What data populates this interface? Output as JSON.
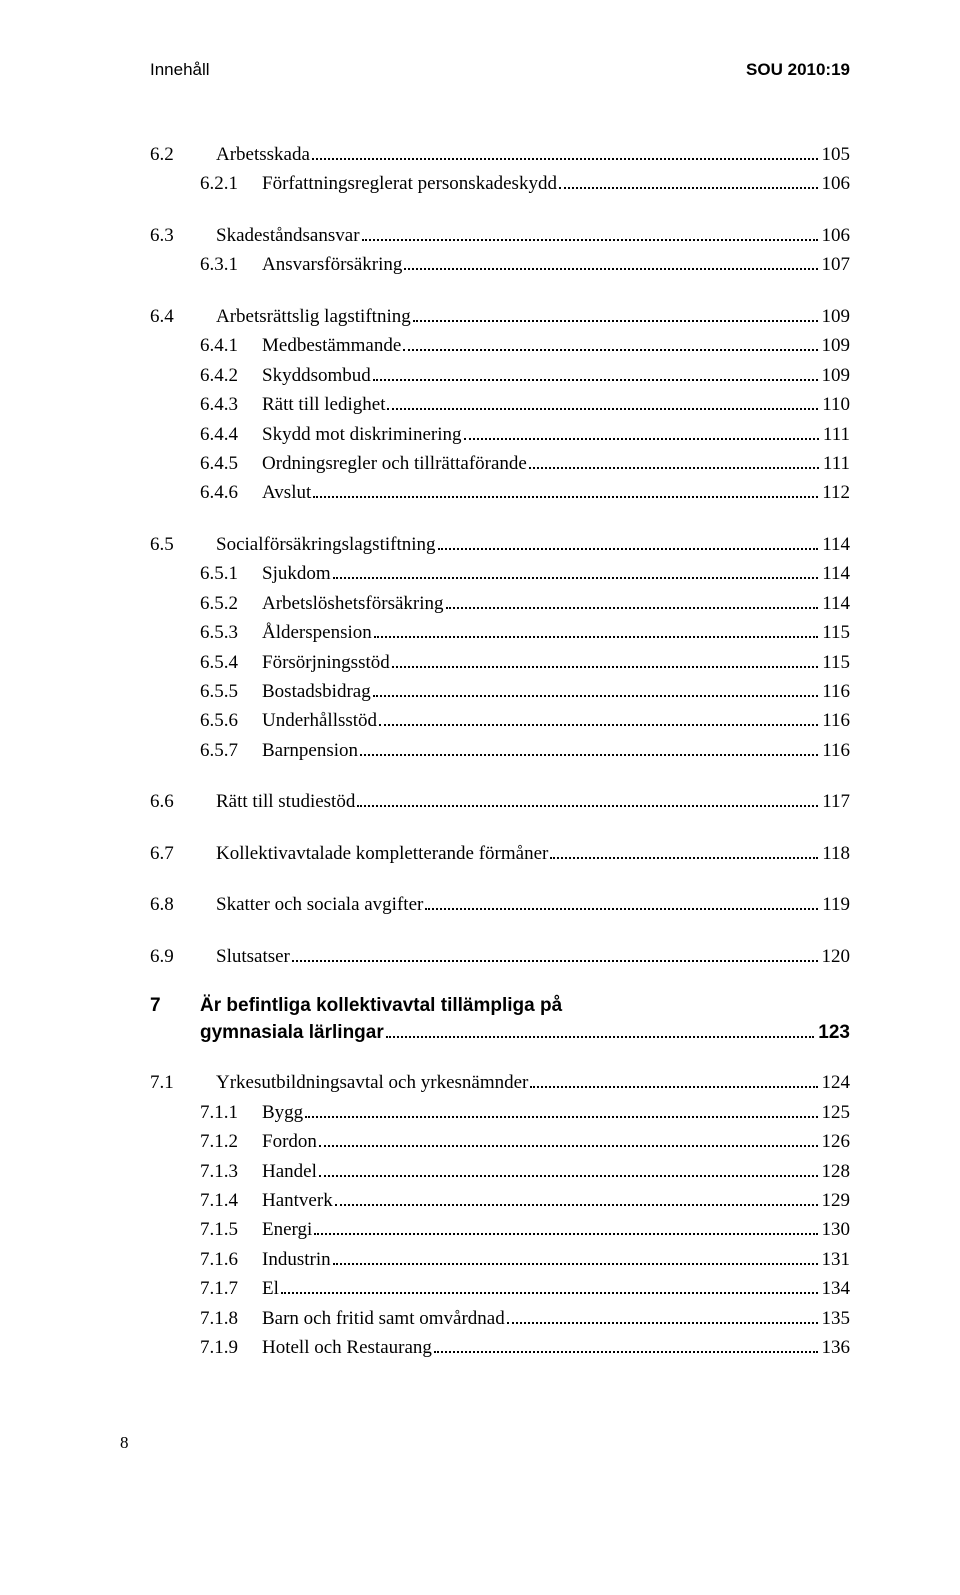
{
  "header": {
    "left": "Innehåll",
    "right": "SOU 2010:19"
  },
  "sections": [
    {
      "lines": [
        {
          "level": "sub",
          "num": "6.2",
          "title": "Arbetsskada",
          "page": "105"
        },
        {
          "level": "subsub",
          "num": "6.2.1",
          "title": "Författningsreglerat personskadeskydd",
          "page": "106"
        }
      ]
    },
    {
      "lines": [
        {
          "level": "sub",
          "num": "6.3",
          "title": "Skadeståndsansvar",
          "page": "106"
        },
        {
          "level": "subsub",
          "num": "6.3.1",
          "title": "Ansvarsförsäkring",
          "page": "107"
        }
      ]
    },
    {
      "lines": [
        {
          "level": "sub",
          "num": "6.4",
          "title": "Arbetsrättslig lagstiftning",
          "page": "109"
        },
        {
          "level": "subsub",
          "num": "6.4.1",
          "title": "Medbestämmande",
          "page": "109"
        },
        {
          "level": "subsub",
          "num": "6.4.2",
          "title": "Skyddsombud",
          "page": "109"
        },
        {
          "level": "subsub",
          "num": "6.4.3",
          "title": "Rätt till ledighet",
          "page": "110"
        },
        {
          "level": "subsub",
          "num": "6.4.4",
          "title": "Skydd mot diskriminering",
          "page": "111"
        },
        {
          "level": "subsub",
          "num": "6.4.5",
          "title": "Ordningsregler och tillrättaförande",
          "page": "111"
        },
        {
          "level": "subsub",
          "num": "6.4.6",
          "title": "Avslut",
          "page": "112"
        }
      ]
    },
    {
      "lines": [
        {
          "level": "sub",
          "num": "6.5",
          "title": "Socialförsäkringslagstiftning",
          "page": "114"
        },
        {
          "level": "subsub",
          "num": "6.5.1",
          "title": "Sjukdom",
          "page": "114"
        },
        {
          "level": "subsub",
          "num": "6.5.2",
          "title": "Arbetslöshetsförsäkring",
          "page": "114"
        },
        {
          "level": "subsub",
          "num": "6.5.3",
          "title": "Ålderspension",
          "page": "115"
        },
        {
          "level": "subsub",
          "num": "6.5.4",
          "title": "Försörjningsstöd",
          "page": "115"
        },
        {
          "level": "subsub",
          "num": "6.5.5",
          "title": "Bostadsbidrag",
          "page": "116"
        },
        {
          "level": "subsub",
          "num": "6.5.6",
          "title": "Underhållsstöd",
          "page": "116"
        },
        {
          "level": "subsub",
          "num": "6.5.7",
          "title": "Barnpension",
          "page": "116"
        }
      ]
    },
    {
      "lines": [
        {
          "level": "sub",
          "num": "6.6",
          "title": "Rätt till studiestöd",
          "page": "117"
        }
      ]
    },
    {
      "lines": [
        {
          "level": "sub",
          "num": "6.7",
          "title": "Kollektivavtalade kompletterande förmåner",
          "page": "118"
        }
      ]
    },
    {
      "lines": [
        {
          "level": "sub",
          "num": "6.8",
          "title": "Skatter och sociala avgifter",
          "page": "119"
        }
      ]
    },
    {
      "lines": [
        {
          "level": "sub",
          "num": "6.9",
          "title": "Slutsatser",
          "page": "120"
        }
      ]
    }
  ],
  "chapter": {
    "num": "7",
    "title": "Är befintliga kollektivavtal tillämpliga på gymnasiala lärlingar",
    "page": "123"
  },
  "chapter_sections": [
    {
      "lines": [
        {
          "level": "sub",
          "num": "7.1",
          "title": "Yrkesutbildningsavtal och yrkesnämnder",
          "page": "124"
        },
        {
          "level": "subsub",
          "num": "7.1.1",
          "title": "Bygg",
          "page": "125"
        },
        {
          "level": "subsub",
          "num": "7.1.2",
          "title": "Fordon",
          "page": "126"
        },
        {
          "level": "subsub",
          "num": "7.1.3",
          "title": "Handel",
          "page": "128"
        },
        {
          "level": "subsub",
          "num": "7.1.4",
          "title": "Hantverk",
          "page": "129"
        },
        {
          "level": "subsub",
          "num": "7.1.5",
          "title": "Energi",
          "page": "130"
        },
        {
          "level": "subsub",
          "num": "7.1.6",
          "title": "Industrin",
          "page": "131"
        },
        {
          "level": "subsub",
          "num": "7.1.7",
          "title": "El",
          "page": "134"
        },
        {
          "level": "subsub",
          "num": "7.1.8",
          "title": "Barn och fritid samt omvårdnad",
          "page": "135"
        },
        {
          "level": "subsub",
          "num": "7.1.9",
          "title": "Hotell och Restaurang",
          "page": "136"
        }
      ]
    }
  ],
  "footer": {
    "page_number": "8"
  }
}
